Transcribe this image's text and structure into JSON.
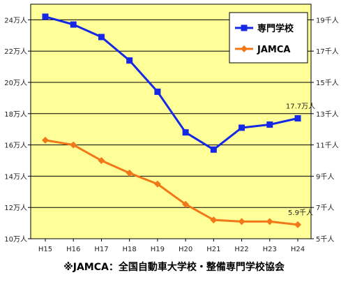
{
  "chart_data": {
    "type": "line",
    "categories": [
      "H15",
      "H16",
      "H17",
      "H18",
      "H19",
      "H20",
      "H21",
      "H22",
      "H23",
      "H24"
    ],
    "y_left": {
      "unit": "万人",
      "min": 10,
      "max": 25,
      "tick_step": 2,
      "tick_labels": [
        "10万人",
        "12万人",
        "14万人",
        "16万人",
        "18万人",
        "20万人",
        "22万人",
        "24万人"
      ]
    },
    "y_right": {
      "unit": "千人",
      "min": 5,
      "max": 20,
      "tick_step": 2,
      "tick_labels": [
        "5千人",
        "7千人",
        "9千人",
        "11千人",
        "13千人",
        "15千人",
        "17千人",
        "19千人"
      ]
    },
    "series": [
      {
        "name": "専門学校",
        "axis": "left",
        "color": "#1428E6",
        "marker": "square",
        "values": [
          24.2,
          23.7,
          22.9,
          21.4,
          19.4,
          16.8,
          15.7,
          17.1,
          17.3,
          17.7
        ],
        "end_label": "17.7万人"
      },
      {
        "name": "JAMCA",
        "axis": "right",
        "color": "#F07818",
        "marker": "diamond",
        "values": [
          11.3,
          11.0,
          10.0,
          9.2,
          8.5,
          7.2,
          6.2,
          6.1,
          6.1,
          5.9
        ],
        "end_label": "5.9千人"
      }
    ],
    "plot_background": "#FFFF99",
    "grid": true,
    "legend_position": "top-right"
  },
  "footnote": "※JAMCA：全国自動車大学校・整備専門学校協会"
}
